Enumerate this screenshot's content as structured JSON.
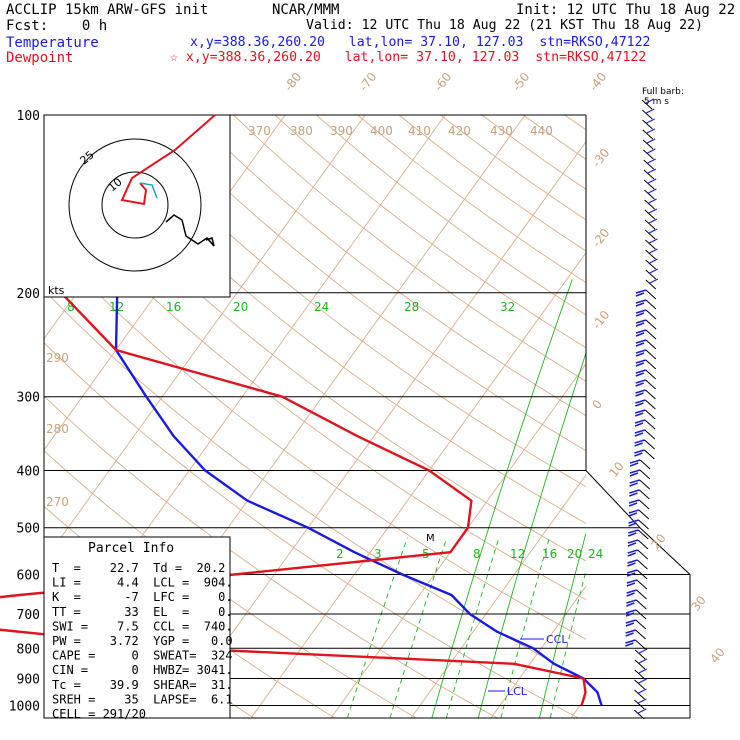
{
  "header": {
    "left1": "ACCLIP 15km ARW-GFS init",
    "left2": "Fcst:    0 h",
    "center": "NCAR/MMM",
    "init": "Init: 12 UTC Thu 18 Aug 22",
    "valid": "Valid: 12 UTC Thu 18 Aug 22 (21 KST Thu 18 Aug 22)",
    "temp_label": "Temperature",
    "temp_info": "x,y=388.36,260.20   lat,lon= 37.10, 127.03  stn=RKSO,47122",
    "dew_label": "Dewpoint",
    "dew_info": "☆ x,y=388.36,260.20   lat,lon= 37.10, 127.03  stn=RKSO,47122"
  },
  "chart_data": {
    "type": "line",
    "chart_kind": "skew-T log-P sounding",
    "yaxis_scale": "log pressure",
    "pressure_labels": [
      "100",
      "200",
      "300",
      "400",
      "500",
      "600",
      "700",
      "800",
      "900",
      "1000"
    ],
    "pressure_values": [
      100,
      200,
      300,
      400,
      500,
      600,
      700,
      800,
      900,
      1000
    ],
    "series": [
      {
        "name": "Temperature",
        "color": "#1a1ae0",
        "x": [
          22.7,
          21,
          18,
          13,
          9,
          3,
          -2,
          -6,
          -14,
          -22,
          -30,
          -40,
          -48,
          -55,
          -62,
          -70,
          -75
        ],
        "y": [
          1000,
          950,
          900,
          850,
          800,
          750,
          700,
          650,
          600,
          550,
          500,
          450,
          400,
          350,
          300,
          250,
          200
        ]
      },
      {
        "name": "Dewpoint",
        "color": "#e0141e",
        "x": [
          20.2,
          19.5,
          18,
          8,
          -35,
          -80,
          -60,
          -35,
          -10,
          -10,
          -12,
          -20,
          -32,
          -45,
          -70,
          -82
        ],
        "y": [
          1000,
          950,
          900,
          850,
          800,
          700,
          650,
          600,
          550,
          500,
          450,
          400,
          350,
          300,
          250,
          200
        ]
      }
    ],
    "isotherm_labels": [
      "-80",
      "-70",
      "-60",
      "-50",
      "-40",
      "-30",
      "-20",
      "-10",
      "0",
      "10",
      "20",
      "30",
      "40"
    ],
    "theta_labels": [
      "370",
      "380",
      "390",
      "400",
      "410",
      "420",
      "430",
      "440",
      "290",
      "280",
      "270"
    ],
    "mixing_ratio_labels_top": [
      "8",
      "12",
      "16",
      "20",
      "24",
      "28",
      "32"
    ],
    "mixing_ratio_labels_mid": [
      "2",
      "3",
      "5",
      "8",
      "12",
      "16",
      "20",
      "24"
    ],
    "annotations": [
      "CCL",
      "LCL",
      "M"
    ],
    "barb_legend": "Full barb:\n5 m s",
    "hodograph": {
      "unit": "kts",
      "ring_labels": [
        "10",
        "25"
      ]
    }
  },
  "parcel_info": {
    "title": "Parcel Info",
    "rows": [
      "T  =    22.7  Td =  20.2",
      "LI =     4.4  LCL =  904.",
      "K  =      -7  LFC =    0.",
      "TT =      33  EL  =    0.",
      "SWI =    7.5  CCL =  740.",
      "PW =    3.72  YGP =   0.0",
      "CAPE =     0  SWEAT=  324",
      "CIN =      0  HWBZ= 3041.",
      "Tc =    39.9  SHEAR=  31.",
      "SREH =    35  LAPSE=  6.1",
      "CELL = 291/20"
    ]
  }
}
